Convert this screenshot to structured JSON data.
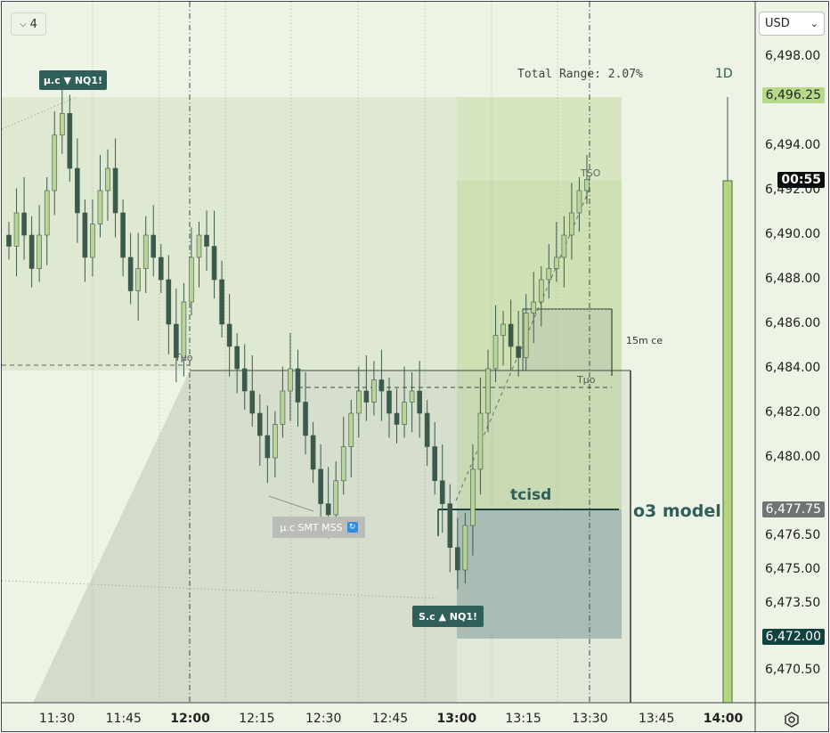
{
  "toolbar": {
    "collapse_count": "4",
    "currency": "USD"
  },
  "chart_data": {
    "type": "candlestick",
    "symbol_labels": {
      "top_marker": "μ.c ▼ NQ1!",
      "bottom_marker": "S.c ▲ NQ1!",
      "mid_marker": "μ.c SMT MSS"
    },
    "annotations": {
      "total_range": "Total Range: 2.07%",
      "timeframe": "1D",
      "tuo_left": "Tμo",
      "tuo_right": "Tμo",
      "tso": "TSO",
      "ce_label": "15m ce",
      "tcisd": "tcisd",
      "model": "o3 model"
    },
    "y_ticks": [
      "6,498.00",
      "6,494.00",
      "6,492.00",
      "6,490.00",
      "6,488.00",
      "6,486.00",
      "6,484.00",
      "6,482.00",
      "6,480.00",
      "6,476.50",
      "6,475.00",
      "6,473.50",
      "6,470.50"
    ],
    "x_ticks": [
      "11:30",
      "11:45",
      "12:00",
      "12:15",
      "12:30",
      "12:45",
      "13:00",
      "13:15",
      "13:30",
      "13:45",
      "14:00"
    ],
    "x_bold": [
      "12:00",
      "13:00",
      "14:00"
    ],
    "price_tags": {
      "high": "6,496.25",
      "countdown": "00:55",
      "mid": "6,477.75",
      "low": "6,472.00"
    },
    "range": {
      "high": 6496.25,
      "low": 6472.0,
      "tso_level": 6492.5,
      "tuo_level": 6484.0,
      "ce_level": 6486.75,
      "tcisd_level": 6478.0
    },
    "closes": [
      6489.5,
      6491,
      6490,
      6488.5,
      6490,
      6492,
      6494.5,
      6495.5,
      6493,
      6491,
      6489,
      6490.5,
      6492,
      6493,
      6491,
      6489,
      6487.5,
      6488.5,
      6490,
      6489,
      6488,
      6486,
      6484.5,
      6487,
      6489,
      6490,
      6489.5,
      6488,
      6486,
      6485,
      6484,
      6483,
      6482,
      6481,
      6480,
      6481.5,
      6483,
      6484,
      6482.5,
      6481,
      6479.5,
      6478,
      6477.5,
      6479,
      6480.5,
      6482,
      6483,
      6482.5,
      6483.5,
      6483,
      6482,
      6481.5,
      6482.5,
      6483,
      6482,
      6480.5,
      6479,
      6478,
      6476,
      6475,
      6477,
      6479.5,
      6482,
      6484,
      6485.5,
      6486,
      6485,
      6484.5,
      6486.5,
      6487,
      6488,
      6488.5,
      6489,
      6490,
      6491,
      6492,
      6492.5
    ]
  }
}
